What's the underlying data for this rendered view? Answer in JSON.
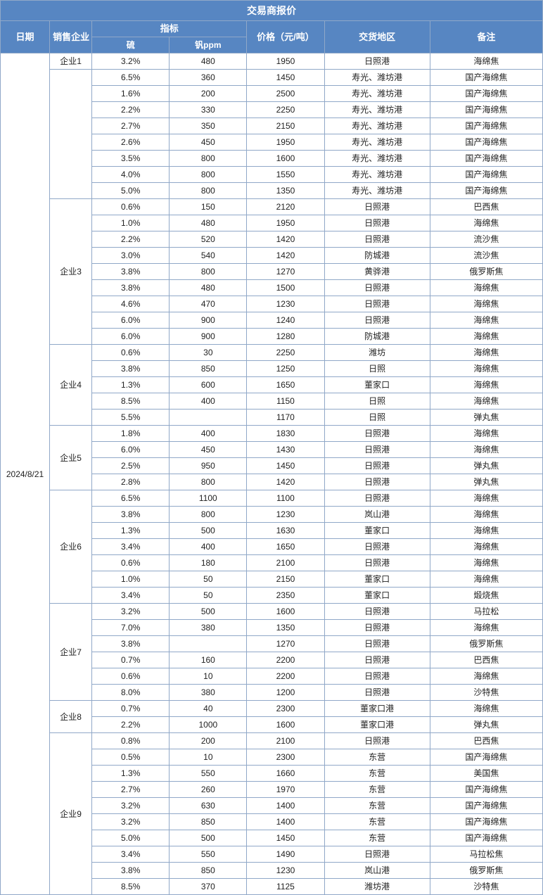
{
  "title": "交易商报价",
  "headers": {
    "date": "日期",
    "seller": "销售企业",
    "spec": "指标",
    "sulfur": "硫",
    "vanadium": "钒ppm",
    "price": "价格（元/吨）",
    "location": "交货地区",
    "note": "备注"
  },
  "date": "2024/8/21",
  "colors": {
    "header_bg": "#5786c2",
    "header_fg": "#ffffff",
    "border": "#90a8c8",
    "cell_fg": "#222222"
  },
  "groups": [
    {
      "seller": "企业1",
      "rows": [
        {
          "s": "3.2%",
          "v": "480",
          "p": "1950",
          "loc": "日照港",
          "note": "海绵焦"
        }
      ]
    },
    {
      "seller": "",
      "rows": [
        {
          "s": "6.5%",
          "v": "360",
          "p": "1450",
          "loc": "寿光、潍坊港",
          "note": "国产海绵焦"
        },
        {
          "s": "1.6%",
          "v": "200",
          "p": "2500",
          "loc": "寿光、潍坊港",
          "note": "国产海绵焦"
        },
        {
          "s": "2.2%",
          "v": "330",
          "p": "2250",
          "loc": "寿光、潍坊港",
          "note": "国产海绵焦"
        },
        {
          "s": "2.7%",
          "v": "350",
          "p": "2150",
          "loc": "寿光、潍坊港",
          "note": "国产海绵焦"
        },
        {
          "s": "2.6%",
          "v": "450",
          "p": "1950",
          "loc": "寿光、潍坊港",
          "note": "国产海绵焦"
        },
        {
          "s": "3.5%",
          "v": "800",
          "p": "1600",
          "loc": "寿光、潍坊港",
          "note": "国产海绵焦"
        },
        {
          "s": "4.0%",
          "v": "800",
          "p": "1550",
          "loc": "寿光、潍坊港",
          "note": "国产海绵焦"
        },
        {
          "s": "5.0%",
          "v": "800",
          "p": "1350",
          "loc": "寿光、潍坊港",
          "note": "国产海绵焦"
        }
      ]
    },
    {
      "seller": "企业3",
      "rows": [
        {
          "s": "0.6%",
          "v": "150",
          "p": "2120",
          "loc": "日照港",
          "note": "巴西焦"
        },
        {
          "s": "1.0%",
          "v": "480",
          "p": "1950",
          "loc": "日照港",
          "note": "海绵焦"
        },
        {
          "s": "2.2%",
          "v": "520",
          "p": "1420",
          "loc": "日照港",
          "note": "流沙焦"
        },
        {
          "s": "3.0%",
          "v": "540",
          "p": "1420",
          "loc": "防城港",
          "note": "流沙焦"
        },
        {
          "s": "3.8%",
          "v": "800",
          "p": "1270",
          "loc": "黄骅港",
          "note": "俄罗斯焦"
        },
        {
          "s": "3.8%",
          "v": "480",
          "p": "1500",
          "loc": "日照港",
          "note": "海绵焦"
        },
        {
          "s": "4.6%",
          "v": "470",
          "p": "1230",
          "loc": "日照港",
          "note": "海绵焦"
        },
        {
          "s": "6.0%",
          "v": "900",
          "p": "1240",
          "loc": "日照港",
          "note": "海绵焦"
        },
        {
          "s": "6.0%",
          "v": "900",
          "p": "1280",
          "loc": "防城港",
          "note": "海绵焦"
        }
      ]
    },
    {
      "seller": "企业4",
      "rows": [
        {
          "s": "0.6%",
          "v": "30",
          "p": "2250",
          "loc": "潍坊",
          "note": "海绵焦"
        },
        {
          "s": "3.8%",
          "v": "850",
          "p": "1250",
          "loc": "日照",
          "note": "海绵焦"
        },
        {
          "s": "1.3%",
          "v": "600",
          "p": "1650",
          "loc": "董家口",
          "note": "海绵焦"
        },
        {
          "s": "8.5%",
          "v": "400",
          "p": "1150",
          "loc": "日照",
          "note": "海绵焦"
        },
        {
          "s": "5.5%",
          "v": "",
          "p": "1170",
          "loc": "日照",
          "note": "弹丸焦"
        }
      ]
    },
    {
      "seller": "企业5",
      "rows": [
        {
          "s": "1.8%",
          "v": "400",
          "p": "1830",
          "loc": "日照港",
          "note": "海绵焦"
        },
        {
          "s": "6.0%",
          "v": "450",
          "p": "1430",
          "loc": "日照港",
          "note": "海绵焦"
        },
        {
          "s": "2.5%",
          "v": "950",
          "p": "1450",
          "loc": "日照港",
          "note": "弹丸焦"
        },
        {
          "s": "2.8%",
          "v": "800",
          "p": "1420",
          "loc": "日照港",
          "note": "弹丸焦"
        }
      ]
    },
    {
      "seller": "企业6",
      "rows": [
        {
          "s": "6.5%",
          "v": "1100",
          "p": "1100",
          "loc": "日照港",
          "note": "海绵焦"
        },
        {
          "s": "3.8%",
          "v": "800",
          "p": "1230",
          "loc": "岚山港",
          "note": "海绵焦"
        },
        {
          "s": "1.3%",
          "v": "500",
          "p": "1630",
          "loc": "董家口",
          "note": "海绵焦"
        },
        {
          "s": "3.4%",
          "v": "400",
          "p": "1650",
          "loc": "日照港",
          "note": "海绵焦"
        },
        {
          "s": "0.6%",
          "v": "180",
          "p": "2100",
          "loc": "日照港",
          "note": "海绵焦"
        },
        {
          "s": "1.0%",
          "v": "50",
          "p": "2150",
          "loc": "董家口",
          "note": "海绵焦"
        },
        {
          "s": "3.4%",
          "v": "50",
          "p": "2350",
          "loc": "董家口",
          "note": "煅烧焦"
        }
      ]
    },
    {
      "seller": "企业7",
      "rows": [
        {
          "s": "3.2%",
          "v": "500",
          "p": "1600",
          "loc": "日照港",
          "note": "马拉松"
        },
        {
          "s": "7.0%",
          "v": "380",
          "p": "1350",
          "loc": "日照港",
          "note": "海绵焦"
        },
        {
          "s": "3.8%",
          "v": "",
          "p": "1270",
          "loc": "日照港",
          "note": "俄罗斯焦"
        },
        {
          "s": "0.7%",
          "v": "160",
          "p": "2200",
          "loc": "日照港",
          "note": "巴西焦"
        },
        {
          "s": "0.6%",
          "v": "10",
          "p": "2200",
          "loc": "日照港",
          "note": "海绵焦"
        },
        {
          "s": "8.0%",
          "v": "380",
          "p": "1200",
          "loc": "日照港",
          "note": "沙特焦"
        }
      ]
    },
    {
      "seller": "企业8",
      "rows": [
        {
          "s": "0.7%",
          "v": "40",
          "p": "2300",
          "loc": "董家口港",
          "note": "海绵焦"
        },
        {
          "s": "2.2%",
          "v": "1000",
          "p": "1600",
          "loc": "董家口港",
          "note": "弹丸焦"
        }
      ]
    },
    {
      "seller": "企业9",
      "rows": [
        {
          "s": "0.8%",
          "v": "200",
          "p": "2100",
          "loc": "日照港",
          "note": "巴西焦"
        },
        {
          "s": "0.5%",
          "v": "10",
          "p": "2300",
          "loc": "东营",
          "note": "国产海绵焦"
        },
        {
          "s": "1.3%",
          "v": "550",
          "p": "1660",
          "loc": "东营",
          "note": "美国焦"
        },
        {
          "s": "2.7%",
          "v": "260",
          "p": "1970",
          "loc": "东营",
          "note": "国产海绵焦"
        },
        {
          "s": "3.2%",
          "v": "630",
          "p": "1400",
          "loc": "东营",
          "note": "国产海绵焦"
        },
        {
          "s": "3.2%",
          "v": "850",
          "p": "1400",
          "loc": "东营",
          "note": "国产海绵焦"
        },
        {
          "s": "5.0%",
          "v": "500",
          "p": "1450",
          "loc": "东营",
          "note": "国产海绵焦"
        },
        {
          "s": "3.4%",
          "v": "550",
          "p": "1490",
          "loc": "日照港",
          "note": "马拉松焦"
        },
        {
          "s": "3.8%",
          "v": "850",
          "p": "1230",
          "loc": "岚山港",
          "note": "俄罗斯焦"
        },
        {
          "s": "8.5%",
          "v": "370",
          "p": "1125",
          "loc": "潍坊港",
          "note": "沙特焦"
        }
      ]
    }
  ]
}
